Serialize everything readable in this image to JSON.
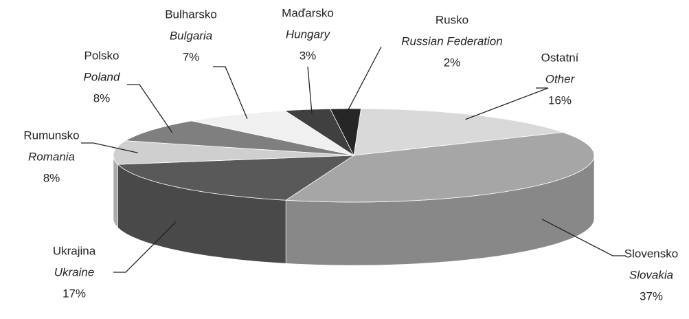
{
  "chart_data": {
    "type": "pie3d",
    "categories": [
      "Ostatní",
      "Slovensko",
      "Ukrajina",
      "Rumunsko",
      "Polsko",
      "Bulharsko",
      "Maďarsko",
      "Rusko"
    ],
    "categories_en": [
      "Other",
      "Slovakia",
      "Ukraine",
      "Romania",
      "Poland",
      "Bulgaria",
      "Hungary",
      "Russian Federation"
    ],
    "values": [
      16,
      37,
      17,
      8,
      8,
      7,
      3,
      2
    ],
    "value_labels": [
      "16%",
      "37%",
      "17%",
      "8%",
      "8%",
      "7%",
      "3%",
      "2%"
    ],
    "colors": [
      "#d9d9d9",
      "#a6a6a6",
      "#595959",
      "#cfcfcf",
      "#7f7f7f",
      "#f0f0f0",
      "#404040",
      "#262626"
    ]
  }
}
